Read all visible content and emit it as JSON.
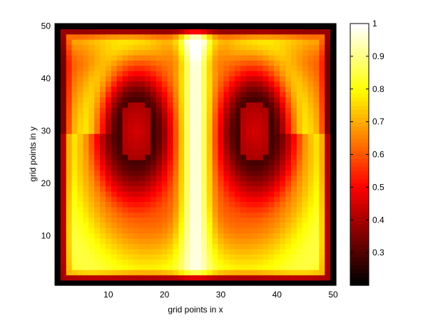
{
  "chart_data": {
    "type": "heatmap",
    "title": "",
    "xlabel": "grid points in x",
    "ylabel": "grid points in y",
    "grid_size": [
      50,
      50
    ],
    "xlim": [
      0.5,
      50.5
    ],
    "ylim": [
      0.5,
      50.5
    ],
    "x_ticks": [
      10,
      20,
      30,
      40,
      50
    ],
    "y_ticks": [
      10,
      20,
      30,
      40,
      50
    ],
    "colormap": "hot",
    "clim": [
      0.2,
      1.0
    ],
    "colorbar": {
      "ticks": [
        0.3,
        0.4,
        0.5,
        0.6,
        0.7,
        0.8,
        0.9,
        1
      ],
      "labels": [
        "0.3",
        "0.4",
        "0.5",
        "0.6",
        "0.7",
        "0.8",
        "0.9",
        "1"
      ]
    },
    "description_field": {
      "pattern": "two counter-rotating vortex lobes, mirror symmetric about x = 25.5",
      "left_vortex_center": [
        15,
        30
      ],
      "right_vortex_center": [
        36,
        30
      ],
      "vortex_core_value": 0.4,
      "vortex_ring_value": 0.28,
      "central_jet_value": 0.98,
      "outer_ring_value": 0.85,
      "boundary_value": 0.2
    }
  }
}
